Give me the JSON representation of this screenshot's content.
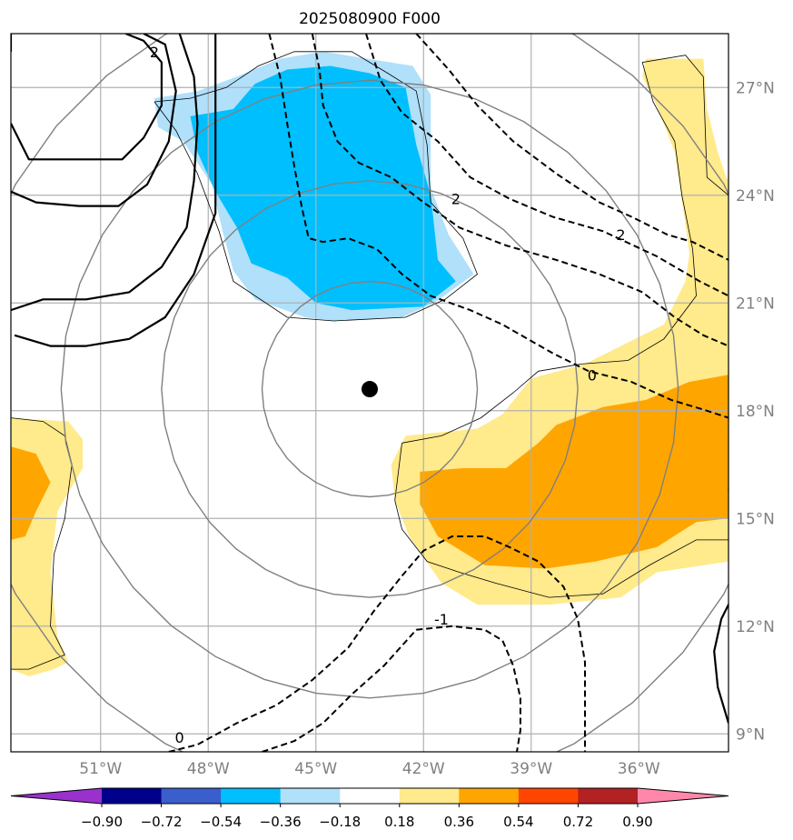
{
  "title": "2025080900 F000",
  "chart_data": {
    "type": "contour-map",
    "title": "2025080900 F000",
    "xlim": [
      -53.5,
      -33.5
    ],
    "ylim": [
      8.5,
      28.5
    ],
    "x_ticks": [
      {
        "value": -51,
        "label": "51°W"
      },
      {
        "value": -48,
        "label": "48°W"
      },
      {
        "value": -45,
        "label": "45°W"
      },
      {
        "value": -42,
        "label": "42°W"
      },
      {
        "value": -39,
        "label": "39°W"
      },
      {
        "value": -36,
        "label": "36°W"
      }
    ],
    "y_ticks": [
      {
        "value": 9,
        "label": "9°N"
      },
      {
        "value": 12,
        "label": "12°N"
      },
      {
        "value": 15,
        "label": "15°N"
      },
      {
        "value": 18,
        "label": "18°N"
      },
      {
        "value": 21,
        "label": "21°N"
      },
      {
        "value": 24,
        "label": "24°N"
      },
      {
        "value": 27,
        "label": "27°N"
      }
    ],
    "grid": true,
    "storm_center": {
      "lon": -43.5,
      "lat": 18.6
    },
    "range_rings_deg": [
      3,
      5.8,
      8.6,
      11.4
    ],
    "colorbar": {
      "levels": [
        "−0.90",
        "−0.72",
        "−0.54",
        "−0.36",
        "−0.18",
        "0.18",
        "0.36",
        "0.54",
        "0.72",
        "0.90"
      ],
      "colors": [
        "#9932cc",
        "#00008b",
        "#3a5fcd",
        "#00bfff",
        "#b0e0fa",
        "#ffffff",
        "#ffea8c",
        "#ffa500",
        "#ff4500",
        "#b22222",
        "#ff88aa"
      ],
      "extend": "both"
    },
    "filled_regions": [
      {
        "name": "negative-light",
        "color": "#b0e0fa",
        "points": [
          [
            -49.5,
            26.7
          ],
          [
            -48.3,
            26.9
          ],
          [
            -47.2,
            27.3
          ],
          [
            -46,
            27.8
          ],
          [
            -44.8,
            28
          ],
          [
            -42.3,
            27.6
          ],
          [
            -41.8,
            26.8
          ],
          [
            -41.8,
            24.2
          ],
          [
            -41.3,
            22.9
          ],
          [
            -40.6,
            21.8
          ],
          [
            -41.7,
            21
          ],
          [
            -42.6,
            20.6
          ],
          [
            -44.5,
            20.5
          ],
          [
            -45.3,
            20.6
          ],
          [
            -46.7,
            21.1
          ],
          [
            -47.3,
            21.9
          ],
          [
            -47.6,
            23
          ],
          [
            -47.9,
            24.3
          ],
          [
            -48.7,
            25.5
          ],
          [
            -49.4,
            25.9
          ]
        ]
      },
      {
        "name": "negative-dark",
        "color": "#00bfff",
        "points": [
          [
            -48.5,
            26.2
          ],
          [
            -47.3,
            26.4
          ],
          [
            -46.7,
            27.1
          ],
          [
            -45.8,
            27.5
          ],
          [
            -44.6,
            27.6
          ],
          [
            -43.5,
            27.4
          ],
          [
            -42.5,
            27
          ],
          [
            -42.2,
            25.4
          ],
          [
            -41.8,
            24
          ],
          [
            -41.6,
            22.2
          ],
          [
            -41.1,
            21.6
          ],
          [
            -42,
            20.9
          ],
          [
            -44,
            20.8
          ],
          [
            -45,
            21
          ],
          [
            -45.8,
            21.7
          ],
          [
            -46.8,
            22.1
          ],
          [
            -47.2,
            23.1
          ],
          [
            -47.8,
            24.1
          ],
          [
            -48.3,
            25.2
          ]
        ]
      },
      {
        "name": "positive-light-east",
        "color": "#ffea8c",
        "points": [
          [
            -42.5,
            17.3
          ],
          [
            -40.5,
            17.5
          ],
          [
            -39.8,
            17.9
          ],
          [
            -39,
            18.9
          ],
          [
            -37.5,
            19.3
          ],
          [
            -36.5,
            19.8
          ],
          [
            -35.3,
            20.4
          ],
          [
            -34.7,
            21.6
          ],
          [
            -34.4,
            23.7
          ],
          [
            -33.5,
            24.5
          ],
          [
            -33.5,
            13.8
          ],
          [
            -35.5,
            13.5
          ],
          [
            -36.5,
            12.8
          ],
          [
            -38.5,
            12.6
          ],
          [
            -40.5,
            12.6
          ],
          [
            -41.5,
            13.2
          ],
          [
            -42.4,
            14.5
          ],
          [
            -42.8,
            15.5
          ],
          [
            -42.9,
            16.5
          ]
        ]
      },
      {
        "name": "positive-dark-east",
        "color": "#ffa500",
        "points": [
          [
            -42.1,
            16.3
          ],
          [
            -40.9,
            16.4
          ],
          [
            -39.7,
            16.4
          ],
          [
            -38.8,
            17.1
          ],
          [
            -38.3,
            17.6
          ],
          [
            -37,
            18.1
          ],
          [
            -35.8,
            18.3
          ],
          [
            -34.6,
            18.8
          ],
          [
            -33.5,
            19
          ],
          [
            -33.5,
            15
          ],
          [
            -34.4,
            14.9
          ],
          [
            -35.5,
            14.2
          ],
          [
            -37.2,
            13.8
          ],
          [
            -38.6,
            13.6
          ],
          [
            -40.3,
            13.7
          ],
          [
            -41.6,
            14.5
          ],
          [
            -42.1,
            15.4
          ]
        ]
      },
      {
        "name": "positive-light-ne",
        "color": "#ffea8c",
        "points": [
          [
            -35.8,
            27.8
          ],
          [
            -34.2,
            27.8
          ],
          [
            -34.1,
            26.4
          ],
          [
            -33.8,
            25.2
          ],
          [
            -33.5,
            24.3
          ],
          [
            -33.5,
            23
          ],
          [
            -33.5,
            19.8
          ],
          [
            -34.3,
            20.3
          ],
          [
            -34.5,
            21.7
          ],
          [
            -34.7,
            23.2
          ],
          [
            -35,
            25.2
          ],
          [
            -35.5,
            26.5
          ],
          [
            -35.9,
            27.3
          ]
        ]
      },
      {
        "name": "positive-light-west",
        "color": "#ffea8c",
        "points": [
          [
            -53.5,
            17.8
          ],
          [
            -51.9,
            17.7
          ],
          [
            -51.5,
            17.2
          ],
          [
            -51.5,
            16.4
          ],
          [
            -52.2,
            15.2
          ],
          [
            -52.4,
            13.5
          ],
          [
            -52.2,
            11.7
          ],
          [
            -51.9,
            11
          ],
          [
            -52.3,
            10.8
          ],
          [
            -53,
            10.6
          ],
          [
            -53.5,
            10.8
          ]
        ]
      },
      {
        "name": "positive-dark-west",
        "color": "#ffa500",
        "points": [
          [
            -53.5,
            17
          ],
          [
            -52.8,
            16.8
          ],
          [
            -52.4,
            16
          ],
          [
            -52.8,
            15.2
          ],
          [
            -53.1,
            14.5
          ],
          [
            -53.5,
            14.4
          ]
        ]
      }
    ],
    "thin_outlines": [
      [
        [
          -49.5,
          26.6
        ],
        [
          -48.5,
          26.7
        ],
        [
          -47.5,
          27
        ],
        [
          -46.6,
          27.6
        ],
        [
          -45.6,
          28
        ],
        [
          -44,
          28
        ],
        [
          -43,
          27.4
        ],
        [
          -42.2,
          26.9
        ],
        [
          -41.9,
          25.4
        ],
        [
          -41.8,
          23.8
        ],
        [
          -40.9,
          22.8
        ],
        [
          -40.5,
          21.8
        ],
        [
          -41.4,
          21.1
        ],
        [
          -42.5,
          20.6
        ],
        [
          -44.5,
          20.5
        ],
        [
          -45.8,
          20.6
        ],
        [
          -47.3,
          21.6
        ],
        [
          -47.7,
          23
        ],
        [
          -48.3,
          24.6
        ],
        [
          -48.9,
          25.8
        ],
        [
          -49.5,
          26.6
        ]
      ],
      [
        [
          -42.6,
          17.1
        ],
        [
          -41.5,
          17.3
        ],
        [
          -40.4,
          17.8
        ],
        [
          -39.5,
          18.5
        ],
        [
          -38.8,
          19.1
        ],
        [
          -37.6,
          19.3
        ],
        [
          -36.3,
          19.4
        ],
        [
          -35.3,
          20
        ],
        [
          -34.4,
          21.2
        ],
        [
          -34.5,
          22.5
        ],
        [
          -34.8,
          24
        ],
        [
          -35,
          25.5
        ],
        [
          -35.6,
          26.6
        ],
        [
          -35.9,
          27.7
        ],
        [
          -34.7,
          27.9
        ],
        [
          -34.2,
          27.3
        ],
        [
          -34.1,
          24.5
        ],
        [
          -33.5,
          24
        ]
      ],
      [
        [
          -42.6,
          17.1
        ],
        [
          -42.8,
          15.5
        ],
        [
          -42.6,
          14.7
        ],
        [
          -41.9,
          13.8
        ],
        [
          -41,
          13.5
        ],
        [
          -40,
          13.2
        ],
        [
          -38.5,
          12.8
        ],
        [
          -37,
          12.9
        ],
        [
          -35.7,
          13.7
        ],
        [
          -34.4,
          14.4
        ],
        [
          -33.5,
          14.4
        ]
      ],
      [
        [
          -53.5,
          17.8
        ],
        [
          -52.6,
          17.7
        ],
        [
          -52,
          17.3
        ],
        [
          -51.8,
          16.5
        ],
        [
          -52,
          15
        ],
        [
          -52.3,
          14
        ],
        [
          -52.4,
          12
        ],
        [
          -52,
          11.2
        ],
        [
          -53,
          10.8
        ],
        [
          -53.5,
          10.8
        ]
      ]
    ],
    "solid_contours": [
      [
        [
          -53.5,
          28.6
        ],
        [
          -53.5,
          28
        ]
      ],
      [
        [
          -53.4,
          20.1
        ],
        [
          -52.4,
          19.8
        ],
        [
          -51.4,
          19.8
        ],
        [
          -50.2,
          20
        ],
        [
          -49.2,
          20.6
        ],
        [
          -48.4,
          21.8
        ],
        [
          -47.8,
          23.5
        ],
        [
          -47.8,
          25.8
        ],
        [
          -47.8,
          27.6
        ],
        [
          -47.8,
          28.5
        ]
      ],
      [
        [
          -53.5,
          20.8
        ],
        [
          -52.6,
          21.1
        ],
        [
          -51.4,
          21.1
        ],
        [
          -50.2,
          21.3
        ],
        [
          -49.3,
          22
        ],
        [
          -48.6,
          23.1
        ],
        [
          -48.4,
          24.4
        ],
        [
          -48.3,
          26
        ],
        [
          -48.4,
          27.3
        ],
        [
          -48.8,
          28.5
        ]
      ],
      [
        [
          -53.5,
          24.1
        ],
        [
          -52.8,
          23.8
        ],
        [
          -51.6,
          23.7
        ],
        [
          -50.5,
          23.7
        ],
        [
          -49.7,
          24.3
        ],
        [
          -49.1,
          25.5
        ],
        [
          -48.9,
          26.9
        ],
        [
          -49.2,
          28.2
        ],
        [
          -49.8,
          28.5
        ]
      ],
      [
        [
          -53.5,
          26
        ],
        [
          -53,
          25
        ],
        [
          -51.9,
          25
        ],
        [
          -50.4,
          25
        ],
        [
          -49.8,
          25.6
        ],
        [
          -49.3,
          26.5
        ],
        [
          -49.3,
          27.7
        ],
        [
          -49.8,
          28.3
        ],
        [
          -50.3,
          28.5
        ]
      ],
      [
        [
          -33.5,
          15.8
        ],
        [
          -33.3,
          16.2
        ]
      ],
      [
        [
          -33.5,
          9.3
        ],
        [
          -33.8,
          10.3
        ],
        [
          -33.9,
          11.3
        ],
        [
          -33.7,
          12.2
        ],
        [
          -33.4,
          12.8
        ]
      ]
    ],
    "dashed_contours": [
      [
        [
          -45.1,
          28.5
        ],
        [
          -44.9,
          27.5
        ],
        [
          -44.8,
          26.5
        ],
        [
          -44.4,
          25.5
        ],
        [
          -43.8,
          24.9
        ],
        [
          -42.9,
          24.5
        ],
        [
          -42,
          23.8
        ],
        [
          -41,
          23.1
        ],
        [
          -39.7,
          22.6
        ],
        [
          -38.3,
          22.2
        ],
        [
          -37.1,
          21.8
        ],
        [
          -35.9,
          21.3
        ],
        [
          -35,
          20.6
        ],
        [
          -34.2,
          20.1
        ],
        [
          -33.5,
          19.8
        ]
      ],
      [
        [
          -46.3,
          28.5
        ],
        [
          -46,
          27.3
        ],
        [
          -45.8,
          26
        ],
        [
          -45.6,
          24.8
        ],
        [
          -45.4,
          23.7
        ],
        [
          -45.2,
          22.8
        ],
        [
          -44.8,
          22.7
        ],
        [
          -44.1,
          22.8
        ],
        [
          -43.3,
          22.5
        ],
        [
          -42.6,
          21.8
        ],
        [
          -41.8,
          21.2
        ],
        [
          -40.7,
          20.8
        ],
        [
          -39.8,
          20.4
        ],
        [
          -39.1,
          20
        ],
        [
          -38.4,
          19.6
        ],
        [
          -37.4,
          19.1
        ],
        [
          -36.2,
          18.8
        ],
        [
          -35.1,
          18.3
        ],
        [
          -34.1,
          18
        ],
        [
          -33.5,
          17.8
        ]
      ],
      [
        [
          -43.6,
          28.5
        ],
        [
          -43.2,
          27.2
        ],
        [
          -42.6,
          26.3
        ],
        [
          -41.6,
          25.5
        ],
        [
          -40.7,
          24.5
        ],
        [
          -39.6,
          23.9
        ],
        [
          -38.4,
          23.4
        ],
        [
          -37,
          23
        ],
        [
          -35.5,
          22.3
        ],
        [
          -34.3,
          21.6
        ],
        [
          -33.5,
          21.2
        ]
      ],
      [
        [
          -42.2,
          28.5
        ],
        [
          -41.3,
          27.5
        ],
        [
          -40.5,
          26.5
        ],
        [
          -39.5,
          25.5
        ],
        [
          -38.3,
          24.6
        ],
        [
          -37.1,
          23.8
        ],
        [
          -36.2,
          23.4
        ],
        [
          -35.2,
          22.9
        ],
        [
          -34.5,
          22.7
        ],
        [
          -33.5,
          22.2
        ]
      ],
      [
        [
          -49.1,
          8.5
        ],
        [
          -48.3,
          8.7
        ],
        [
          -47.2,
          9.3
        ],
        [
          -46.1,
          9.8
        ],
        [
          -45.1,
          10.5
        ],
        [
          -44.1,
          11.4
        ],
        [
          -43.4,
          12.4
        ],
        [
          -42.6,
          13.4
        ],
        [
          -42,
          14.1
        ],
        [
          -41.2,
          14.5
        ],
        [
          -40.3,
          14.5
        ],
        [
          -39.6,
          14.2
        ],
        [
          -38.8,
          13.8
        ],
        [
          -38.1,
          13.1
        ],
        [
          -37.7,
          12.2
        ],
        [
          -37.5,
          11
        ],
        [
          -37.5,
          9.7
        ],
        [
          -37.5,
          8.5
        ]
      ],
      [
        [
          -46.5,
          8.5
        ],
        [
          -45.6,
          8.8
        ],
        [
          -44.8,
          9.3
        ],
        [
          -44,
          10.1
        ],
        [
          -43.1,
          10.9
        ],
        [
          -42.2,
          11.9
        ],
        [
          -41.2,
          12
        ],
        [
          -40.3,
          11.9
        ],
        [
          -39.8,
          11.6
        ],
        [
          -39.5,
          10.9
        ],
        [
          -39.3,
          10
        ],
        [
          -39.3,
          9.1
        ],
        [
          -39.4,
          8.5
        ]
      ]
    ],
    "contour_labels": [
      {
        "text": "2",
        "lon": -49.5,
        "lat": 28.0
      },
      {
        "text": "2",
        "lon": -41.1,
        "lat": 23.9
      },
      {
        "text": "2",
        "lon": -36.5,
        "lat": 22.9
      },
      {
        "text": "0",
        "lon": -37.3,
        "lat": 19.0
      },
      {
        "text": "0",
        "lon": -48.8,
        "lat": 8.9
      },
      {
        "text": "-1",
        "lon": -41.5,
        "lat": 12.2
      }
    ]
  }
}
